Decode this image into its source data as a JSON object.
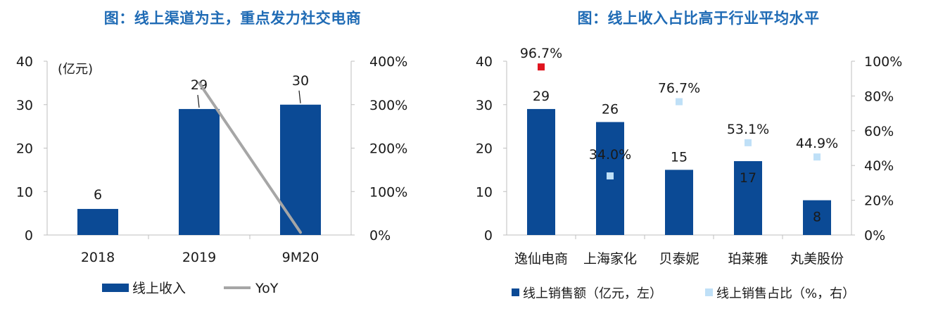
{
  "chart_data": [
    {
      "type": "bar",
      "title": "图：线上渠道为主，重点发力社交电商",
      "unit_label": "(亿元)",
      "categories": [
        "2018",
        "2019",
        "9M20"
      ],
      "series": [
        {
          "name": "线上收入",
          "type": "bar",
          "axis": "left",
          "values": [
            6,
            29,
            30
          ],
          "labels": [
            "6",
            "29",
            "30"
          ],
          "color": "#0b4a95"
        },
        {
          "name": "YoY",
          "type": "line",
          "axis": "right",
          "values": [
            null,
            3.5,
            0.06
          ],
          "color": "#a6a6a6"
        }
      ],
      "ylim_left": [
        0,
        40
      ],
      "yticks_left": [
        "0",
        "10",
        "20",
        "30",
        "40"
      ],
      "ylim_right": [
        0,
        4
      ],
      "yticks_right": [
        "0%",
        "100%",
        "200%",
        "300%",
        "400%"
      ],
      "grid": false,
      "legend_position": "bottom"
    },
    {
      "type": "bar",
      "title": "图：线上收入占比高于行业平均水平",
      "categories": [
        "逸仙电商",
        "上海家化",
        "贝泰妮",
        "珀莱雅",
        "丸美股份"
      ],
      "series": [
        {
          "name": "线上销售额（亿元，左）",
          "type": "bar",
          "axis": "left",
          "values": [
            29,
            26,
            15,
            17,
            8
          ],
          "labels": [
            "29",
            "26",
            "15",
            "17",
            "8"
          ],
          "color": "#0b4a95"
        },
        {
          "name": "线上销售占比（%，右）",
          "type": "scatter",
          "axis": "right",
          "values": [
            0.967,
            0.34,
            0.767,
            0.531,
            0.449
          ],
          "labels": [
            "96.7%",
            "34.0%",
            "76.7%",
            "53.1%",
            "44.9%"
          ],
          "color": "#bfe0f7",
          "highlight_color": "#e0141e"
        }
      ],
      "ylim_left": [
        0,
        40
      ],
      "yticks_left": [
        "0",
        "10",
        "20",
        "30",
        "40"
      ],
      "ylim_right": [
        0,
        1
      ],
      "yticks_right": [
        "0%",
        "20%",
        "40%",
        "60%",
        "80%",
        "100%"
      ],
      "grid": false,
      "legend_position": "bottom"
    }
  ]
}
